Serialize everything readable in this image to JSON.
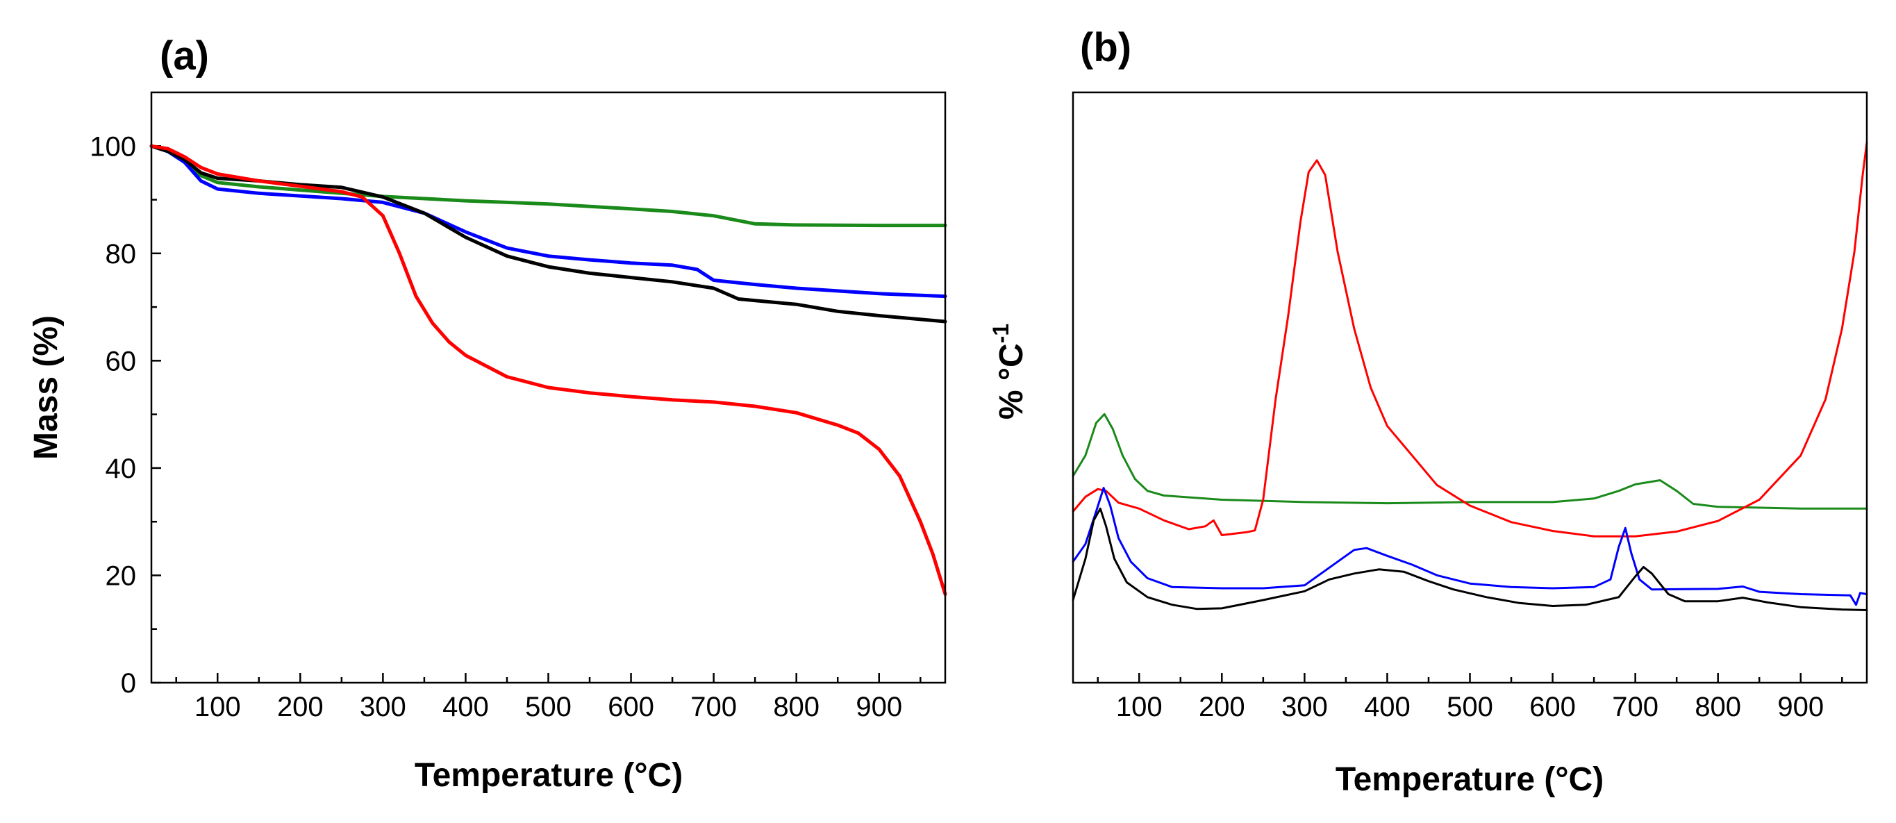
{
  "chart_data": [
    {
      "panel": "(a)",
      "type": "line",
      "title": "",
      "xlabel": "Temperature (°C)",
      "ylabel": "Mass (%)",
      "xlim": [
        20,
        980
      ],
      "ylim": [
        0,
        110
      ],
      "xticks": [
        100,
        200,
        300,
        400,
        500,
        600,
        700,
        800,
        900
      ],
      "yticks": [
        0,
        20,
        40,
        60,
        80,
        100
      ],
      "grid": false,
      "legend": "none",
      "series": [
        {
          "name": "green",
          "color": "#1a8a1a",
          "points": [
            [
              20,
              100
            ],
            [
              40,
              99
            ],
            [
              60,
              97
            ],
            [
              80,
              94.5
            ],
            [
              100,
              93.2
            ],
            [
              150,
              92.4
            ],
            [
              200,
              91.8
            ],
            [
              250,
              91.2
            ],
            [
              300,
              90.6
            ],
            [
              400,
              89.8
            ],
            [
              500,
              89.2
            ],
            [
              600,
              88.3
            ],
            [
              650,
              87.8
            ],
            [
              700,
              87
            ],
            [
              750,
              85.5
            ],
            [
              800,
              85.3
            ],
            [
              900,
              85.2
            ],
            [
              980,
              85.2
            ]
          ]
        },
        {
          "name": "blue",
          "color": "#0000ff",
          "points": [
            [
              20,
              100
            ],
            [
              40,
              99
            ],
            [
              60,
              97
            ],
            [
              80,
              93.5
            ],
            [
              100,
              92
            ],
            [
              150,
              91.2
            ],
            [
              200,
              90.7
            ],
            [
              250,
              90.2
            ],
            [
              300,
              89.5
            ],
            [
              350,
              87.5
            ],
            [
              400,
              84
            ],
            [
              450,
              81
            ],
            [
              500,
              79.5
            ],
            [
              550,
              78.8
            ],
            [
              600,
              78.2
            ],
            [
              650,
              77.8
            ],
            [
              680,
              77
            ],
            [
              700,
              75
            ],
            [
              750,
              74.2
            ],
            [
              800,
              73.5
            ],
            [
              900,
              72.5
            ],
            [
              980,
              72
            ]
          ]
        },
        {
          "name": "black",
          "color": "#000000",
          "points": [
            [
              20,
              100
            ],
            [
              40,
              99
            ],
            [
              60,
              97.5
            ],
            [
              80,
              95
            ],
            [
              100,
              94
            ],
            [
              150,
              93.5
            ],
            [
              200,
              92.8
            ],
            [
              250,
              92.3
            ],
            [
              300,
              90.5
            ],
            [
              350,
              87.5
            ],
            [
              400,
              83
            ],
            [
              450,
              79.5
            ],
            [
              500,
              77.5
            ],
            [
              550,
              76.3
            ],
            [
              600,
              75.5
            ],
            [
              650,
              74.7
            ],
            [
              700,
              73.5
            ],
            [
              730,
              71.5
            ],
            [
              800,
              70.5
            ],
            [
              850,
              69.2
            ],
            [
              900,
              68.4
            ],
            [
              980,
              67.3
            ]
          ]
        },
        {
          "name": "red",
          "color": "#ff0000",
          "points": [
            [
              20,
              100
            ],
            [
              40,
              99.5
            ],
            [
              60,
              98
            ],
            [
              80,
              96
            ],
            [
              100,
              94.8
            ],
            [
              150,
              93.5
            ],
            [
              200,
              92.5
            ],
            [
              250,
              91.5
            ],
            [
              275,
              90.5
            ],
            [
              300,
              87
            ],
            [
              320,
              80
            ],
            [
              340,
              72
            ],
            [
              360,
              67
            ],
            [
              380,
              63.5
            ],
            [
              400,
              61
            ],
            [
              450,
              57
            ],
            [
              500,
              55
            ],
            [
              550,
              54
            ],
            [
              600,
              53.3
            ],
            [
              650,
              52.7
            ],
            [
              700,
              52.3
            ],
            [
              750,
              51.5
            ],
            [
              800,
              50.3
            ],
            [
              850,
              48
            ],
            [
              875,
              46.5
            ],
            [
              900,
              43.5
            ],
            [
              925,
              38.5
            ],
            [
              950,
              30
            ],
            [
              965,
              24
            ],
            [
              980,
              16.5
            ]
          ]
        }
      ]
    },
    {
      "panel": "(b)",
      "type": "line",
      "title": "",
      "xlabel": "Temperature (°C)",
      "ylabel_text": "% °C",
      "ylabel_superscript": "-1",
      "xlim": [
        20,
        980
      ],
      "ylim": [
        0,
        100
      ],
      "xticks": [
        100,
        200,
        300,
        400,
        500,
        600,
        700,
        800,
        900
      ],
      "yticks": [],
      "grid": false,
      "legend": "none",
      "series": [
        {
          "name": "green",
          "color": "#1a8a1a",
          "points": [
            [
              20,
              35
            ],
            [
              35,
              38.5
            ],
            [
              48,
              44
            ],
            [
              58,
              45.5
            ],
            [
              68,
              43
            ],
            [
              80,
              38.5
            ],
            [
              95,
              34.5
            ],
            [
              110,
              32.5
            ],
            [
              130,
              31.7
            ],
            [
              200,
              31
            ],
            [
              300,
              30.6
            ],
            [
              400,
              30.4
            ],
            [
              500,
              30.6
            ],
            [
              600,
              30.6
            ],
            [
              650,
              31.2
            ],
            [
              680,
              32.5
            ],
            [
              700,
              33.6
            ],
            [
              730,
              34.3
            ],
            [
              750,
              32.5
            ],
            [
              770,
              30.3
            ],
            [
              800,
              29.8
            ],
            [
              900,
              29.5
            ],
            [
              980,
              29.5
            ]
          ]
        },
        {
          "name": "red",
          "color": "#ff0000",
          "points": [
            [
              20,
              29
            ],
            [
              35,
              31.5
            ],
            [
              50,
              32.8
            ],
            [
              60,
              32.5
            ],
            [
              75,
              30.5
            ],
            [
              100,
              29.5
            ],
            [
              130,
              27.5
            ],
            [
              160,
              26
            ],
            [
              180,
              26.5
            ],
            [
              190,
              27.5
            ],
            [
              200,
              25
            ],
            [
              230,
              25.5
            ],
            [
              240,
              25.8
            ],
            [
              250,
              31
            ],
            [
              265,
              48
            ],
            [
              280,
              62
            ],
            [
              295,
              78
            ],
            [
              305,
              86.5
            ],
            [
              315,
              88.5
            ],
            [
              325,
              86
            ],
            [
              340,
              73
            ],
            [
              360,
              60
            ],
            [
              380,
              50
            ],
            [
              400,
              43.5
            ],
            [
              430,
              38.5
            ],
            [
              460,
              33.5
            ],
            [
              500,
              30
            ],
            [
              550,
              27.2
            ],
            [
              600,
              25.7
            ],
            [
              650,
              24.8
            ],
            [
              700,
              24.8
            ],
            [
              750,
              25.6
            ],
            [
              800,
              27.4
            ],
            [
              850,
              31
            ],
            [
              900,
              38.5
            ],
            [
              930,
              48
            ],
            [
              950,
              60
            ],
            [
              965,
              73
            ],
            [
              975,
              86
            ],
            [
              980,
              91.5
            ]
          ]
        },
        {
          "name": "blue",
          "color": "#0000ff",
          "points": [
            [
              20,
              20.5
            ],
            [
              35,
              23.5
            ],
            [
              48,
              29
            ],
            [
              57,
              33
            ],
            [
              65,
              30
            ],
            [
              75,
              24.5
            ],
            [
              90,
              20.5
            ],
            [
              110,
              17.7
            ],
            [
              140,
              16.2
            ],
            [
              200,
              16
            ],
            [
              250,
              16
            ],
            [
              300,
              16.5
            ],
            [
              330,
              19.5
            ],
            [
              360,
              22.5
            ],
            [
              375,
              22.8
            ],
            [
              400,
              21.5
            ],
            [
              430,
              20
            ],
            [
              460,
              18.2
            ],
            [
              500,
              16.8
            ],
            [
              550,
              16.2
            ],
            [
              600,
              16
            ],
            [
              650,
              16.2
            ],
            [
              670,
              17.5
            ],
            [
              680,
              23
            ],
            [
              688,
              26.2
            ],
            [
              695,
              22
            ],
            [
              705,
              17.5
            ],
            [
              720,
              15.8
            ],
            [
              800,
              15.9
            ],
            [
              830,
              16.3
            ],
            [
              850,
              15.4
            ],
            [
              900,
              15
            ],
            [
              960,
              14.8
            ],
            [
              967,
              13.2
            ],
            [
              972,
              15.2
            ],
            [
              980,
              15
            ]
          ]
        },
        {
          "name": "black",
          "color": "#000000",
          "points": [
            [
              20,
              14
            ],
            [
              35,
              21
            ],
            [
              45,
              27.5
            ],
            [
              53,
              29.5
            ],
            [
              60,
              26.5
            ],
            [
              70,
              21
            ],
            [
              85,
              17
            ],
            [
              110,
              14.5
            ],
            [
              140,
              13.2
            ],
            [
              170,
              12.5
            ],
            [
              200,
              12.6
            ],
            [
              250,
              14
            ],
            [
              300,
              15.5
            ],
            [
              330,
              17.5
            ],
            [
              360,
              18.5
            ],
            [
              390,
              19.2
            ],
            [
              420,
              18.8
            ],
            [
              450,
              17.2
            ],
            [
              480,
              15.8
            ],
            [
              520,
              14.5
            ],
            [
              560,
              13.5
            ],
            [
              600,
              13
            ],
            [
              640,
              13.2
            ],
            [
              680,
              14.5
            ],
            [
              700,
              18
            ],
            [
              710,
              19.6
            ],
            [
              720,
              18.5
            ],
            [
              740,
              15
            ],
            [
              760,
              13.8
            ],
            [
              800,
              13.8
            ],
            [
              830,
              14.4
            ],
            [
              860,
              13.6
            ],
            [
              900,
              12.8
            ],
            [
              950,
              12.4
            ],
            [
              980,
              12.3
            ]
          ]
        }
      ]
    }
  ]
}
